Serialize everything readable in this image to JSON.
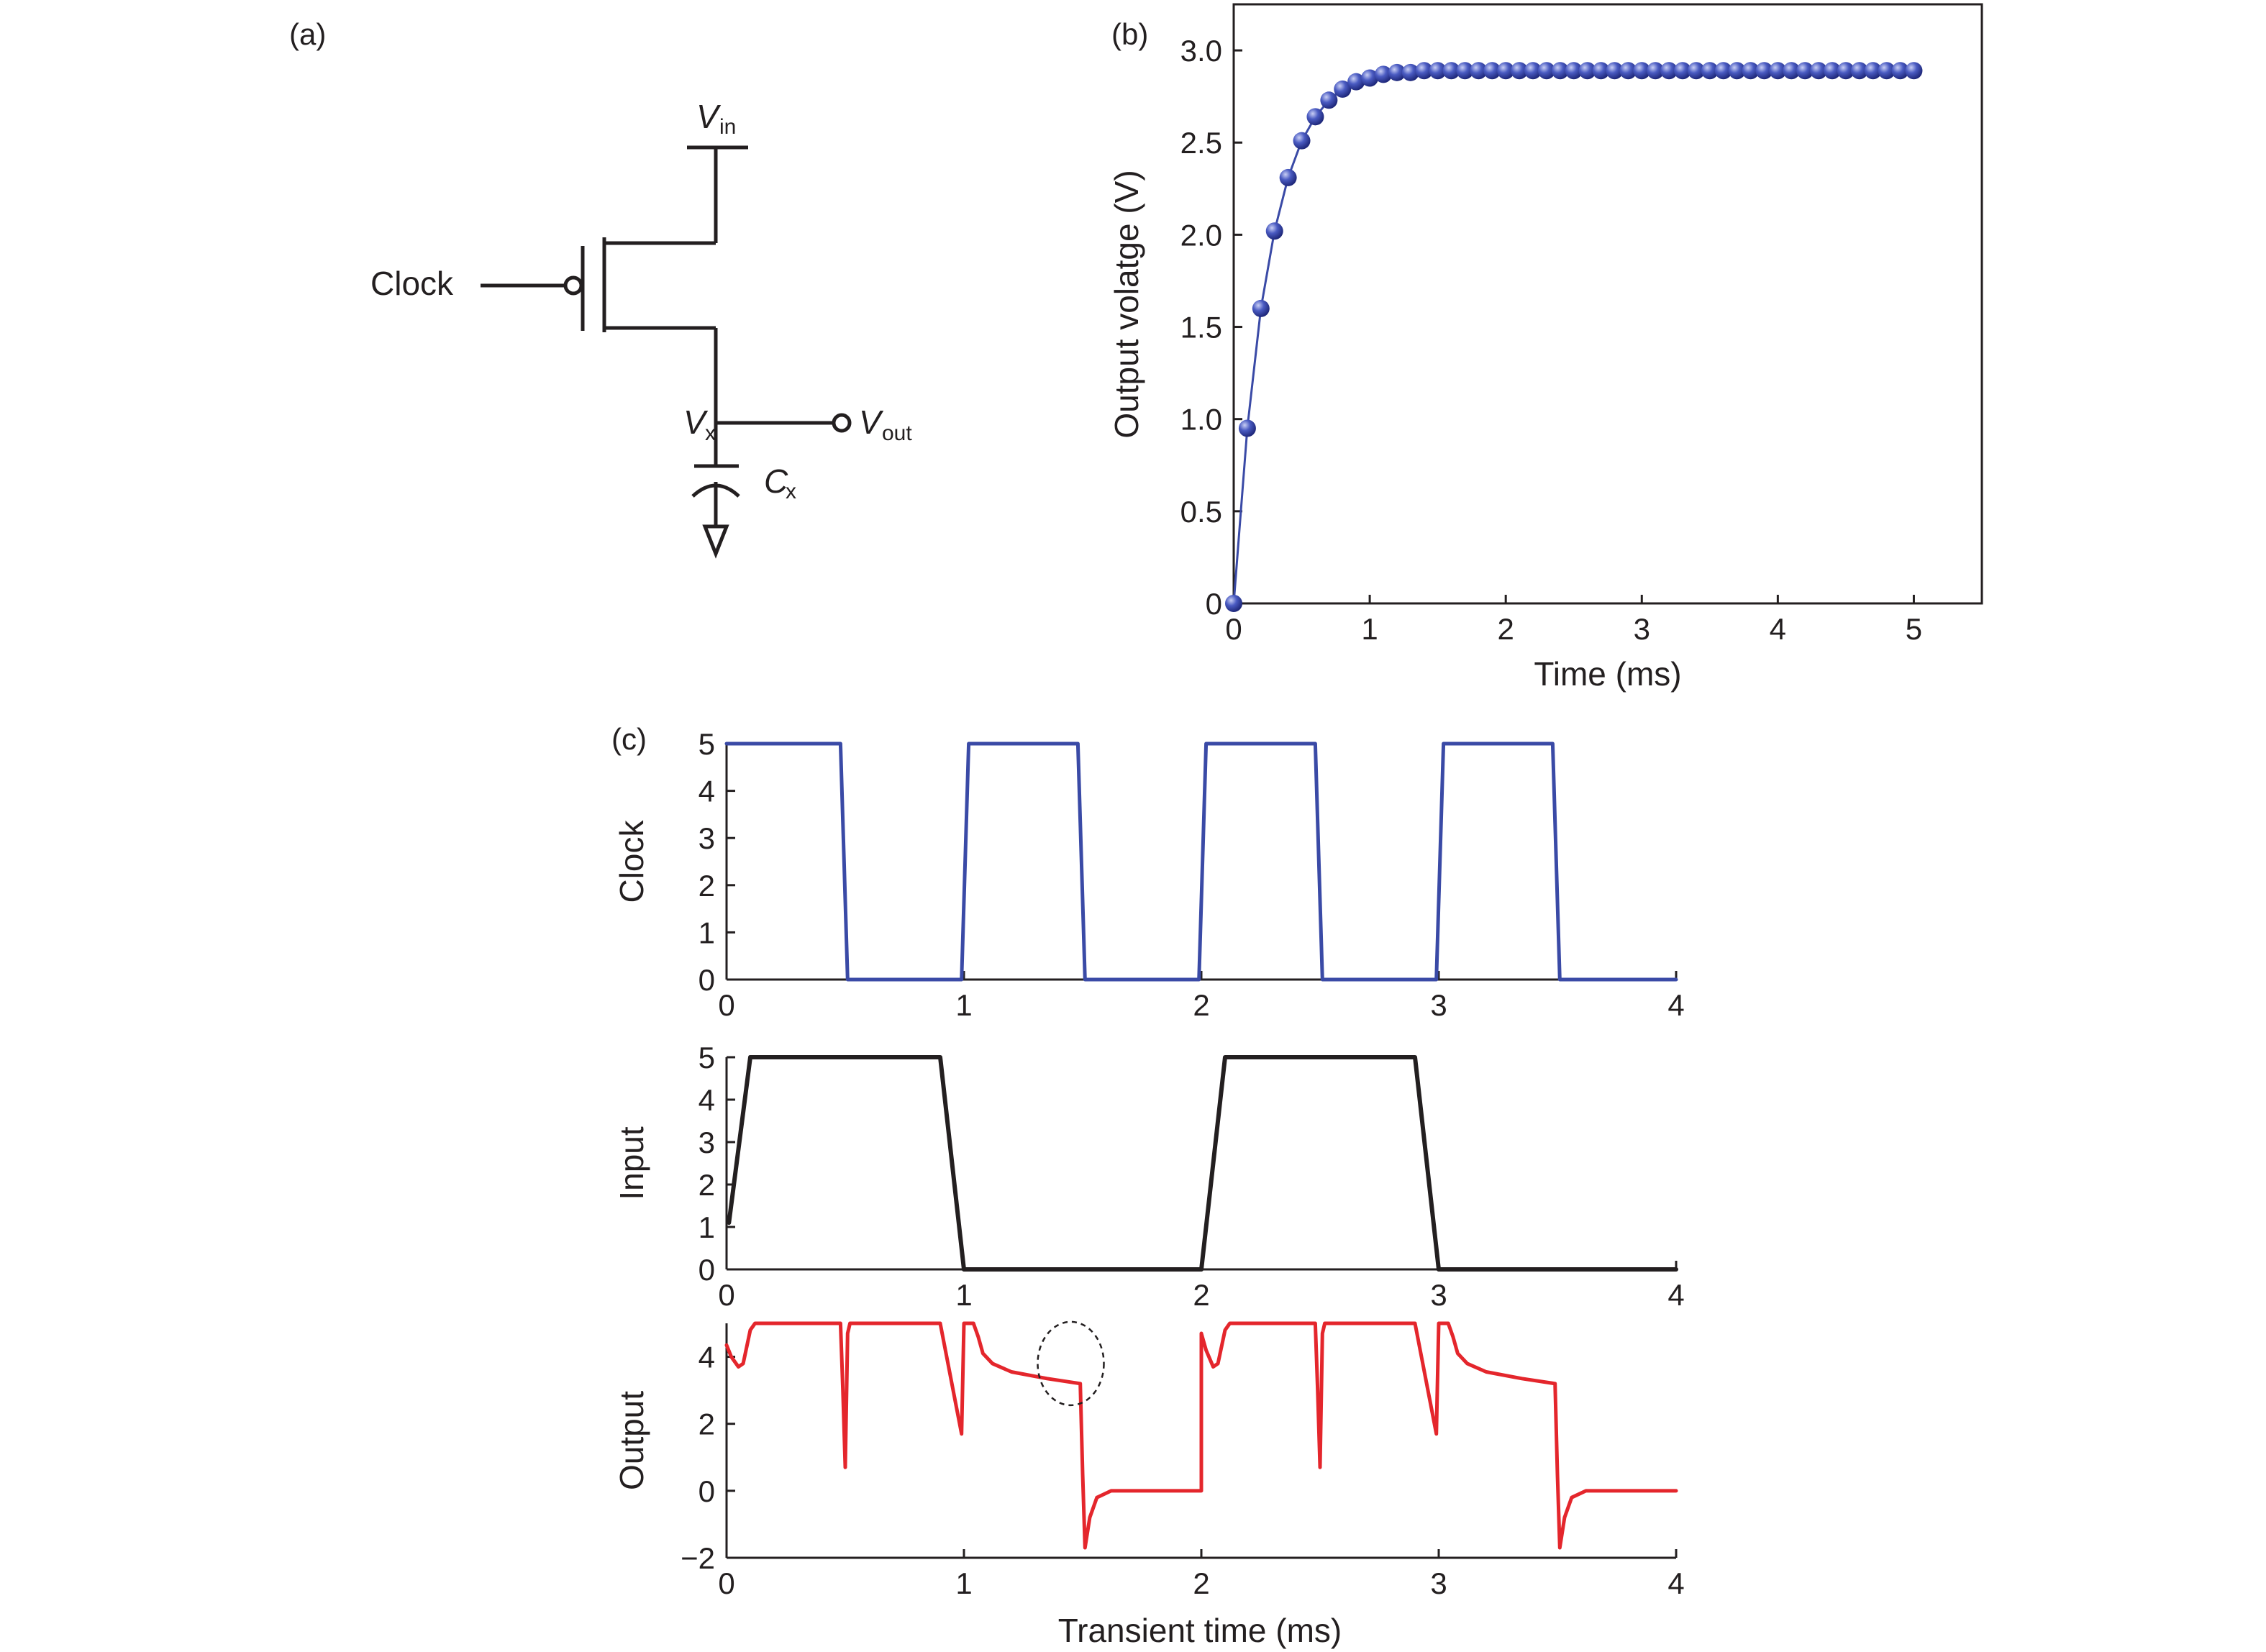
{
  "panels": {
    "a": "(a)",
    "b": "(b)",
    "c": "(c)"
  },
  "circuit": {
    "vin": "V",
    "vin_sub": "in",
    "clock": "Clock",
    "vx": "V",
    "vx_sub": "x",
    "vout": "V",
    "vout_sub": "out",
    "cx": "C",
    "cx_sub": "x"
  },
  "colors": {
    "blue": "#3a4aa6",
    "black": "#231f20",
    "red": "#e4262c"
  },
  "chart_data": [
    {
      "id": "b",
      "type": "scatter",
      "xlabel": "Time (ms)",
      "ylabel": "Output volatge (V)",
      "xlim": [
        0,
        5.5
      ],
      "ylim": [
        0,
        3.25
      ],
      "xticks": [
        0,
        1,
        2,
        3,
        4,
        5
      ],
      "yticks": [
        0,
        0.5,
        1.0,
        1.5,
        2.0,
        2.5,
        3.0
      ],
      "ytick_labels": [
        "0",
        "0.5",
        "1.0",
        "1.5",
        "2.0",
        "2.5",
        "3.0"
      ],
      "series": [
        {
          "x": [
            0,
            0.1,
            0.2,
            0.3,
            0.4,
            0.5,
            0.6,
            0.7,
            0.8,
            0.9,
            1.0,
            1.1,
            1.2,
            1.3,
            1.4,
            1.5,
            1.6,
            1.7,
            1.8,
            1.9,
            2.0,
            2.1,
            2.2,
            2.3,
            2.4,
            2.5,
            2.6,
            2.7,
            2.8,
            2.9,
            3.0,
            3.1,
            3.2,
            3.3,
            3.4,
            3.5,
            3.6,
            3.7,
            3.8,
            3.9,
            4.0,
            4.1,
            4.2,
            4.3,
            4.4,
            4.5,
            4.6,
            4.7,
            4.8,
            4.9,
            5.0
          ],
          "y": [
            0.0,
            0.95,
            1.6,
            2.02,
            2.31,
            2.51,
            2.64,
            2.73,
            2.79,
            2.83,
            2.85,
            2.87,
            2.88,
            2.88,
            2.89,
            2.89,
            2.89,
            2.89,
            2.89,
            2.89,
            2.89,
            2.89,
            2.89,
            2.89,
            2.89,
            2.89,
            2.89,
            2.89,
            2.89,
            2.89,
            2.89,
            2.89,
            2.89,
            2.89,
            2.89,
            2.89,
            2.89,
            2.89,
            2.89,
            2.89,
            2.89,
            2.89,
            2.89,
            2.89,
            2.89,
            2.89,
            2.89,
            2.89,
            2.89,
            2.89,
            2.89
          ],
          "color": "#3a4aa6"
        }
      ]
    },
    {
      "id": "c-clock",
      "type": "line",
      "xlabel": "",
      "ylabel": "Clock",
      "xlim": [
        0,
        4
      ],
      "ylim": [
        0,
        5
      ],
      "xticks": [
        0,
        1,
        2,
        3,
        4
      ],
      "yticks": [
        0,
        1,
        2,
        3,
        4,
        5
      ],
      "series": [
        {
          "x": [
            0,
            0.48,
            0.51,
            0.99,
            1.02,
            1.48,
            1.51,
            1.99,
            2.02,
            2.48,
            2.51,
            2.99,
            3.02,
            3.48,
            3.51,
            4.0
          ],
          "y": [
            5,
            5,
            0,
            0,
            5,
            5,
            0,
            0,
            5,
            5,
            0,
            0,
            5,
            5,
            0,
            0
          ],
          "color": "#3a4aa6"
        }
      ]
    },
    {
      "id": "c-input",
      "type": "line",
      "xlabel": "",
      "ylabel": "Input",
      "xlim": [
        0,
        4
      ],
      "ylim": [
        0,
        5
      ],
      "xticks": [
        0,
        1,
        2,
        3,
        4
      ],
      "yticks": [
        0,
        1,
        2,
        3,
        4,
        5
      ],
      "series": [
        {
          "x": [
            0.01,
            0.1,
            0.9,
            1.0,
            2.0,
            2.1,
            2.9,
            3.0,
            4.0
          ],
          "y": [
            1.1,
            5,
            5,
            0,
            0,
            5,
            5,
            0,
            0
          ],
          "color": "#231f20"
        }
      ]
    },
    {
      "id": "c-output",
      "type": "line",
      "xlabel": "Transient time (ms)",
      "ylabel": "Output",
      "xlim": [
        0,
        4
      ],
      "ylim": [
        -2,
        5
      ],
      "xticks": [
        0,
        1,
        2,
        3,
        4
      ],
      "yticks": [
        -2,
        0,
        2,
        4
      ],
      "ytick_labels": [
        "−2",
        "0",
        "2",
        "4"
      ],
      "series": [
        {
          "x": [
            0.0,
            0.02,
            0.05,
            0.07,
            0.1,
            0.12,
            0.48,
            0.49,
            0.5,
            0.51,
            0.52,
            0.9,
            0.93,
            0.96,
            0.99,
            1.0,
            1.01,
            1.04,
            1.06,
            1.08,
            1.12,
            1.2,
            1.35,
            1.49,
            1.5,
            1.51,
            1.53,
            1.56,
            1.62,
            2.0,
            2.0,
            2.02,
            2.05,
            2.07,
            2.1,
            2.12,
            2.48,
            2.49,
            2.5,
            2.51,
            2.52,
            2.9,
            2.93,
            2.96,
            2.99,
            3.0,
            3.01,
            3.04,
            3.06,
            3.08,
            3.12,
            3.2,
            3.35,
            3.49,
            3.5,
            3.51,
            3.53,
            3.56,
            3.62,
            4.0
          ],
          "y": [
            4.35,
            4.0,
            3.7,
            3.8,
            4.8,
            5.0,
            5.0,
            3.0,
            0.7,
            4.7,
            5.0,
            5.0,
            3.9,
            2.8,
            1.7,
            5.0,
            5.0,
            5.0,
            4.6,
            4.1,
            3.8,
            3.55,
            3.35,
            3.2,
            0.5,
            -1.7,
            -0.8,
            -0.2,
            0.0,
            0.0,
            4.7,
            4.2,
            3.7,
            3.8,
            4.8,
            5.0,
            5.0,
            3.0,
            0.7,
            4.7,
            5.0,
            5.0,
            3.9,
            2.8,
            1.7,
            5.0,
            5.0,
            5.0,
            4.6,
            4.1,
            3.8,
            3.55,
            3.35,
            3.2,
            0.5,
            -1.7,
            -0.8,
            -0.2,
            0.0,
            0.0
          ],
          "color": "#e4262c"
        }
      ],
      "annotations": [
        {
          "type": "dashed-ellipse",
          "cx": 1.45,
          "cy": 3.8
        }
      ]
    }
  ]
}
